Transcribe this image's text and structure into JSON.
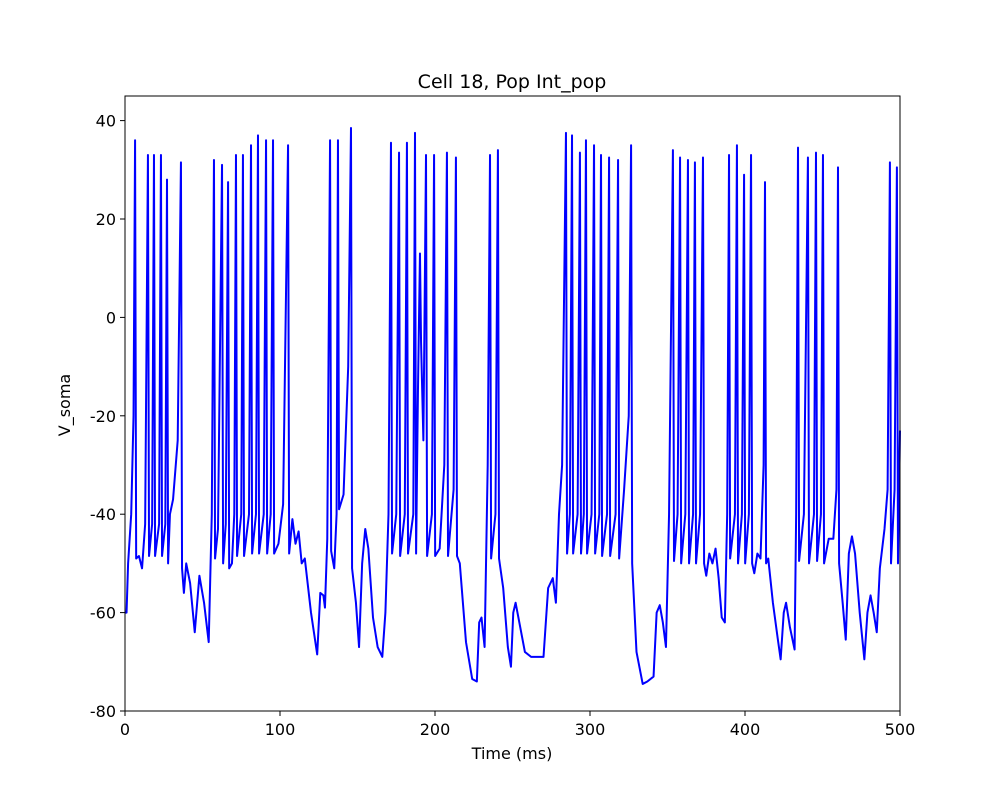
{
  "chart_data": {
    "type": "line",
    "title": "Cell 18, Pop Int_pop",
    "xlabel": "Time (ms)",
    "ylabel": "V_soma",
    "xlim": [
      0,
      500
    ],
    "ylim": [
      -80,
      45
    ],
    "xticks": [
      0,
      100,
      200,
      300,
      400,
      500
    ],
    "yticks": [
      -80,
      -60,
      -40,
      -20,
      0,
      20,
      40
    ],
    "x": [
      0,
      1,
      2,
      4,
      5.5,
      6.5,
      7.2,
      9,
      11,
      13,
      14.8,
      15.5,
      17.5,
      18.7,
      19.4,
      22,
      23.2,
      23.9,
      26,
      27.1,
      27.8,
      29,
      31,
      34,
      36.1,
      36.8,
      38,
      39.5,
      42,
      45,
      48,
      51,
      54,
      56,
      57.4,
      58.1,
      60,
      62.6,
      63.3,
      65,
      66.5,
      67.2,
      69,
      70.5,
      71.6,
      72.3,
      75,
      76.1,
      76.8,
      80,
      81.3,
      82,
      84.5,
      85.8,
      86.5,
      89.5,
      91,
      91.7,
      94,
      95.5,
      96.2,
      99,
      102,
      105.2,
      105.9,
      108,
      110,
      112,
      114,
      116,
      120,
      124,
      126,
      128,
      129,
      130.5,
      132.3,
      133,
      135,
      136.5,
      137.4,
      138.1,
      141,
      144,
      145.8,
      146.5,
      149,
      151,
      153,
      155,
      157,
      160,
      163,
      166,
      168,
      170,
      171.6,
      172.3,
      175,
      176.8,
      177.5,
      180.5,
      181.9,
      182.6,
      186,
      187.1,
      187.8,
      189,
      190.3,
      191,
      192.5,
      194.2,
      194.9,
      198,
      199.4,
      200.1,
      203,
      206,
      207.7,
      208.4,
      212,
      213.5,
      214.2,
      216,
      220,
      224,
      227,
      228.5,
      230,
      232,
      234,
      235.5,
      236.2,
      239,
      240.6,
      241.3,
      244,
      247,
      249,
      250.5,
      252,
      255,
      258,
      262,
      270,
      273,
      276,
      278,
      280,
      282,
      284.5,
      285.2,
      287,
      288.4,
      289.1,
      292,
      293.5,
      294.2,
      296,
      297.4,
      298.1,
      301,
      302.6,
      303.3,
      306,
      307.1,
      307.8,
      311,
      312.3,
      313,
      316.5,
      318.1,
      318.8,
      322,
      325,
      326.5,
      327.2,
      330,
      334,
      337,
      341,
      343,
      345,
      347,
      349,
      351,
      353.5,
      354.2,
      356.5,
      358.1,
      358.8,
      361.5,
      363.2,
      363.9,
      366.5,
      367.7,
      368.4,
      371,
      372.9,
      373.6,
      375,
      377,
      379,
      381,
      383,
      385,
      387,
      388.5,
      389.7,
      390.4,
      393.5,
      394.8,
      395.5,
      398,
      399.4,
      400.1,
      402.5,
      403.9,
      404.6,
      406,
      408,
      410,
      412,
      412.9,
      413.6,
      415,
      418,
      421,
      423,
      425,
      426.5,
      429,
      432,
      433,
      434.2,
      434.9,
      438,
      440.6,
      441.3,
      444.5,
      445.8,
      446.5,
      449,
      450.3,
      451,
      454,
      457,
      459,
      460,
      460.7,
      463,
      465,
      467,
      469,
      471,
      474,
      477,
      479,
      481,
      483,
      485,
      487,
      490,
      492,
      493.5,
      494.2,
      496.5,
      498,
      498.7,
      500
    ],
    "series": [
      {
        "name": "V_soma",
        "color": "#0000ff",
        "values": [
          -60,
          -60,
          -50,
          -40,
          -20,
          36,
          -49,
          -48.5,
          -51,
          -42,
          33,
          -48.5,
          -42,
          33,
          -48.5,
          -42,
          33,
          -48.5,
          -42,
          28,
          -50,
          -40,
          -37,
          -25,
          31.5,
          -51,
          -56,
          -50,
          -54,
          -64,
          -52.5,
          -58,
          -66,
          -40,
          32,
          -49,
          -43,
          31,
          -50,
          -42,
          27.5,
          -51,
          -50,
          -40,
          33,
          -48.5,
          -40,
          33,
          -48.5,
          -40,
          35,
          -48,
          -40,
          37,
          -48,
          -40,
          36,
          -48,
          -40,
          36,
          -48,
          -46,
          -38,
          35,
          -48,
          -41,
          -46,
          -43.5,
          -50,
          -49,
          -60,
          -68.5,
          -56,
          -56.5,
          -59,
          -45,
          36,
          -47.5,
          -51,
          -40,
          36,
          -39,
          -36,
          -10,
          38.5,
          -51,
          -58,
          -67,
          -50,
          -43,
          -47,
          -61,
          -67,
          -69,
          -60,
          -40,
          35.5,
          -48,
          -40,
          33.5,
          -48.5,
          -40,
          35.5,
          -48,
          -40,
          37.5,
          -48,
          -15,
          13,
          -5,
          -25,
          33,
          -48.5,
          -40,
          33,
          -48.5,
          -47,
          -30,
          33.5,
          -48.5,
          -35,
          32.5,
          -48.5,
          -50,
          -66,
          -73.5,
          -74,
          -62,
          -61,
          -67,
          -30,
          33,
          -49,
          -40,
          34,
          -49,
          -55,
          -67,
          -71,
          -60,
          -58,
          -63,
          -68,
          -69,
          -69,
          -55,
          -53,
          -58,
          -40,
          -30,
          37.5,
          -48,
          -40,
          37,
          -48,
          -40,
          33.5,
          -48,
          -40,
          36,
          -48,
          -40,
          35,
          -48,
          -40,
          33,
          -48.5,
          -40,
          32.5,
          -48.5,
          -40,
          32,
          -49,
          -35,
          -20,
          35,
          -50,
          -68,
          -74.5,
          -74,
          -73,
          -60,
          -58.5,
          -62,
          -67,
          -40,
          34,
          -49.5,
          -40,
          32.5,
          -50,
          -40,
          32,
          -50,
          -40,
          31.5,
          -50,
          -40,
          32.5,
          -50,
          -52.5,
          -48,
          -50,
          -47,
          -53,
          -61,
          -62,
          -40,
          33,
          -49,
          -40,
          35,
          -50,
          -40,
          29,
          -50,
          -40,
          33,
          -50,
          -52,
          -48,
          -49,
          -30,
          27.5,
          -50,
          -49,
          -58,
          -65,
          -69.5,
          -60,
          -58,
          -63,
          -67.5,
          -40,
          34.5,
          -49.5,
          -40,
          32.5,
          -50,
          -40,
          33.5,
          -49.5,
          -40,
          33,
          -50,
          -45,
          -45,
          -35,
          30.5,
          -50,
          -58,
          -65.5,
          -48,
          -44.5,
          -48,
          -60,
          -69.5,
          -60,
          -56.5,
          -60,
          -64,
          -51,
          -43,
          -35,
          31.5,
          -50,
          -35,
          30.5,
          -50,
          -23
        ]
      }
    ]
  }
}
